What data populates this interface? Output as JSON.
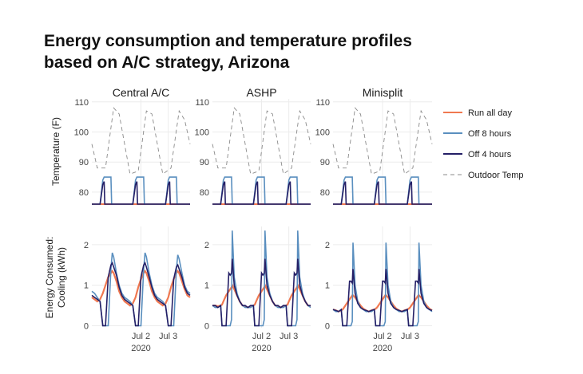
{
  "title_line1": "Energy consumption and temperature profiles",
  "title_line2": "based on A/C strategy, Arizona",
  "colors": {
    "run_all_day": "#f07850",
    "off_8_hours": "#5a8fbf",
    "off_4_hours": "#241f66",
    "outdoor_temp": "#8a8a8a",
    "grid": "#ececec"
  },
  "chart_data": {
    "type": "line",
    "layout": "small-multiples 2 rows x 3 columns",
    "panels": [
      "Central A/C",
      "ASHP",
      "Minisplit"
    ],
    "x_axis": {
      "range": [
        "2020-07-01T00:00",
        "2020-07-03T24:00"
      ],
      "ticks": [
        "2020-07-02",
        "2020-07-03"
      ],
      "tick_labels": [
        "Jul 2",
        "Jul 3"
      ],
      "year_label": "2020"
    },
    "rows": [
      {
        "ylabel": "Temperature (F)",
        "ylim": [
          76,
          111
        ],
        "yticks": [
          80,
          90,
          100,
          110
        ]
      },
      {
        "ylabel_line1": "Energy Consumed:",
        "ylabel_line2": "Cooling (kWh)",
        "ylim": [
          -0.05,
          2.45
        ],
        "yticks": [
          0,
          1,
          2
        ]
      }
    ],
    "legend": {
      "position": "right",
      "entries": [
        {
          "key": "run_all_day",
          "label": "Run all day"
        },
        {
          "key": "off_8_hours",
          "label": "Off 8 hours"
        },
        {
          "key": "off_4_hours",
          "label": "Off 4 hours"
        },
        {
          "key": "outdoor_temp",
          "label": "Outdoor Temp"
        }
      ]
    },
    "temperature": {
      "hours": [
        0,
        4,
        10,
        16,
        20,
        28,
        34,
        40,
        44,
        52,
        58,
        64,
        68,
        72
      ],
      "outdoor": [
        96,
        88,
        88,
        108,
        106,
        86,
        87,
        107,
        106,
        86,
        88,
        107,
        104,
        96
      ],
      "run_all_day": [
        76,
        76
      ],
      "run_all_day_hours": [
        0,
        72
      ],
      "off_8_hours": {
        "hours": [
          0,
          6,
          8,
          9,
          14,
          14.5,
          30,
          32,
          33,
          38,
          38.5,
          54,
          56,
          57,
          62,
          62.5,
          72
        ],
        "values": [
          76,
          76,
          84,
          85,
          85,
          76,
          76,
          84,
          85,
          85,
          76,
          76,
          84,
          85,
          85,
          76,
          76
        ]
      },
      "off_4_hours": {
        "hours": [
          0,
          6,
          8,
          9,
          9.5,
          30,
          32,
          33,
          33.5,
          54,
          56,
          57,
          57.5,
          72
        ],
        "values": [
          76,
          76,
          82.5,
          83.5,
          76,
          76,
          82.5,
          83.5,
          76,
          76,
          82.5,
          83.5,
          76,
          76
        ]
      }
    },
    "energy": [
      {
        "panel": "Central A/C",
        "hours": [
          0,
          2,
          4,
          6,
          8,
          10,
          12,
          14,
          15,
          16,
          18,
          20,
          22,
          24,
          26,
          28,
          30,
          32,
          34,
          36,
          38,
          39,
          40,
          42,
          44,
          46,
          48,
          50,
          52,
          54,
          56,
          58,
          60,
          62,
          63,
          64,
          66,
          68,
          70,
          72
        ],
        "run_all_day": [
          0.7,
          0.65,
          0.6,
          0.65,
          0.8,
          1.0,
          1.2,
          1.3,
          1.35,
          1.3,
          1.1,
          0.85,
          0.7,
          0.6,
          0.55,
          0.5,
          0.55,
          0.7,
          0.95,
          1.15,
          1.3,
          1.35,
          1.3,
          1.1,
          0.85,
          0.7,
          0.6,
          0.55,
          0.5,
          0.55,
          0.7,
          0.95,
          1.15,
          1.3,
          1.35,
          1.3,
          1.1,
          0.9,
          0.75,
          0.7
        ],
        "off_8_hours": [
          0.85,
          0.8,
          0.7,
          0.6,
          0.0,
          0.0,
          0.0,
          1.4,
          1.8,
          1.7,
          1.3,
          1.0,
          0.8,
          0.7,
          0.65,
          0.6,
          0.5,
          0.0,
          0.0,
          0.0,
          1.4,
          1.8,
          1.7,
          1.3,
          1.0,
          0.8,
          0.7,
          0.65,
          0.6,
          0.5,
          0.0,
          0.0,
          0.0,
          1.4,
          1.75,
          1.65,
          1.3,
          1.0,
          0.85,
          0.8
        ],
        "off_4_hours": [
          0.75,
          0.7,
          0.65,
          0.6,
          0.0,
          0.0,
          1.2,
          1.5,
          1.55,
          1.45,
          1.25,
          0.95,
          0.75,
          0.65,
          0.6,
          0.55,
          0.5,
          0.0,
          0.0,
          1.2,
          1.5,
          1.55,
          1.45,
          1.2,
          0.95,
          0.75,
          0.65,
          0.6,
          0.55,
          0.5,
          0.0,
          0.0,
          1.15,
          1.45,
          1.5,
          1.4,
          1.2,
          0.95,
          0.8,
          0.75
        ]
      },
      {
        "panel": "ASHP",
        "hours": [
          0,
          2,
          4,
          6,
          7,
          8,
          10,
          12,
          13,
          14,
          14.5,
          16,
          18,
          20,
          22,
          24,
          26,
          28,
          30,
          31,
          32,
          34,
          36,
          37,
          38,
          38.5,
          40,
          42,
          44,
          46,
          48,
          50,
          52,
          54,
          55,
          56,
          58,
          60,
          61,
          62,
          62.5,
          64,
          66,
          68,
          70,
          72
        ],
        "run_all_day": [
          0.5,
          0.5,
          0.48,
          0.5,
          0.52,
          0.6,
          0.75,
          0.85,
          0.9,
          0.95,
          1.0,
          0.9,
          0.75,
          0.6,
          0.5,
          0.48,
          0.45,
          0.48,
          0.5,
          0.52,
          0.6,
          0.75,
          0.85,
          0.9,
          0.95,
          1.0,
          0.9,
          0.75,
          0.6,
          0.5,
          0.48,
          0.45,
          0.48,
          0.5,
          0.52,
          0.6,
          0.75,
          0.85,
          0.9,
          0.95,
          1.0,
          0.9,
          0.75,
          0.6,
          0.5,
          0.48
        ],
        "off_8_hours": [
          0.5,
          0.45,
          0.45,
          0.5,
          0.0,
          0.0,
          0.0,
          0.0,
          0.0,
          0.15,
          2.35,
          1.2,
          0.8,
          0.6,
          0.5,
          0.45,
          0.45,
          0.45,
          0.5,
          0.0,
          0.0,
          0.0,
          0.0,
          0.0,
          0.15,
          2.35,
          1.2,
          0.8,
          0.6,
          0.5,
          0.45,
          0.45,
          0.45,
          0.5,
          0.0,
          0.0,
          0.0,
          0.0,
          0.0,
          0.15,
          2.35,
          1.2,
          0.8,
          0.6,
          0.5,
          0.45
        ],
        "off_4_hours": [
          0.5,
          0.5,
          0.45,
          0.5,
          0.0,
          0.0,
          0.0,
          1.3,
          1.25,
          1.3,
          1.65,
          1.0,
          0.75,
          0.6,
          0.5,
          0.5,
          0.45,
          0.5,
          0.5,
          0.0,
          0.0,
          0.0,
          1.3,
          1.25,
          1.3,
          1.65,
          1.0,
          0.75,
          0.6,
          0.5,
          0.5,
          0.45,
          0.5,
          0.5,
          0.0,
          0.0,
          0.0,
          1.3,
          1.25,
          1.3,
          1.65,
          1.0,
          0.75,
          0.6,
          0.5,
          0.5
        ]
      },
      {
        "panel": "Minisplit",
        "hours": [
          0,
          2,
          4,
          6,
          7,
          8,
          10,
          12,
          13,
          14,
          14.5,
          16,
          18,
          20,
          22,
          24,
          26,
          28,
          30,
          31,
          32,
          34,
          36,
          37,
          38,
          38.5,
          40,
          42,
          44,
          46,
          48,
          50,
          52,
          54,
          55,
          56,
          58,
          60,
          61,
          62,
          62.5,
          64,
          66,
          68,
          70,
          72
        ],
        "run_all_day": [
          0.4,
          0.38,
          0.35,
          0.38,
          0.4,
          0.45,
          0.55,
          0.65,
          0.7,
          0.75,
          0.75,
          0.7,
          0.6,
          0.5,
          0.42,
          0.38,
          0.35,
          0.38,
          0.4,
          0.42,
          0.45,
          0.55,
          0.65,
          0.7,
          0.75,
          0.75,
          0.7,
          0.6,
          0.5,
          0.42,
          0.38,
          0.35,
          0.38,
          0.4,
          0.42,
          0.45,
          0.55,
          0.65,
          0.7,
          0.75,
          0.75,
          0.7,
          0.6,
          0.5,
          0.42,
          0.38
        ],
        "off_8_hours": [
          0.4,
          0.35,
          0.35,
          0.4,
          0.0,
          0.0,
          0.0,
          0.0,
          0.0,
          0.1,
          2.05,
          1.0,
          0.6,
          0.45,
          0.4,
          0.35,
          0.35,
          0.35,
          0.4,
          0.0,
          0.0,
          0.0,
          0.0,
          0.0,
          0.1,
          2.05,
          1.0,
          0.6,
          0.45,
          0.4,
          0.35,
          0.35,
          0.35,
          0.4,
          0.0,
          0.0,
          0.0,
          0.0,
          0.0,
          0.1,
          2.05,
          1.0,
          0.6,
          0.45,
          0.4,
          0.35
        ],
        "off_4_hours": [
          0.4,
          0.38,
          0.35,
          0.4,
          0.0,
          0.0,
          0.0,
          1.1,
          1.1,
          1.05,
          1.4,
          0.8,
          0.55,
          0.45,
          0.4,
          0.38,
          0.35,
          0.38,
          0.4,
          0.0,
          0.0,
          0.0,
          1.1,
          1.1,
          1.05,
          1.4,
          0.8,
          0.55,
          0.45,
          0.4,
          0.38,
          0.35,
          0.38,
          0.4,
          0.0,
          0.0,
          0.0,
          1.1,
          1.1,
          1.05,
          1.4,
          0.8,
          0.55,
          0.45,
          0.4,
          0.38
        ]
      }
    ]
  }
}
